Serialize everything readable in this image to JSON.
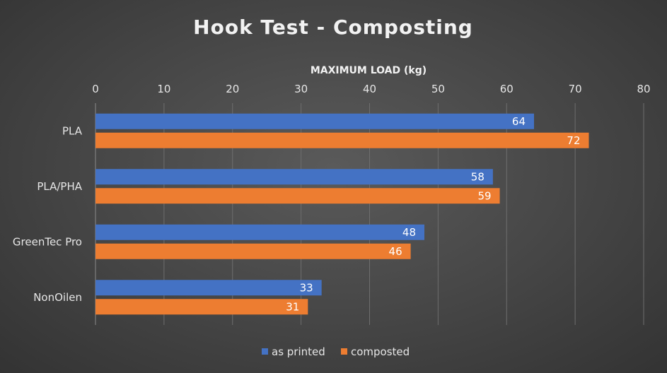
{
  "chart_data": {
    "type": "bar",
    "orientation": "horizontal",
    "title": "Hook Test - Composting",
    "xlabel": "MAXIMUM LOAD (kg)",
    "ylabel": "",
    "xlim": [
      0,
      80
    ],
    "xticks": [
      "0",
      "10",
      "20",
      "30",
      "40",
      "50",
      "60",
      "70",
      "80"
    ],
    "categories": [
      "PLA",
      "PLA/PHA",
      "GreenTec Pro",
      "NonOilen"
    ],
    "series": [
      {
        "name": "as printed",
        "color": "#4472c4",
        "values": [
          64,
          58,
          48,
          33
        ]
      },
      {
        "name": "composted",
        "color": "#ed7d31",
        "values": [
          72,
          59,
          46,
          31
        ]
      }
    ],
    "grid": true,
    "legend_position": "bottom",
    "x_axis_position": "top",
    "data_labels": true
  }
}
